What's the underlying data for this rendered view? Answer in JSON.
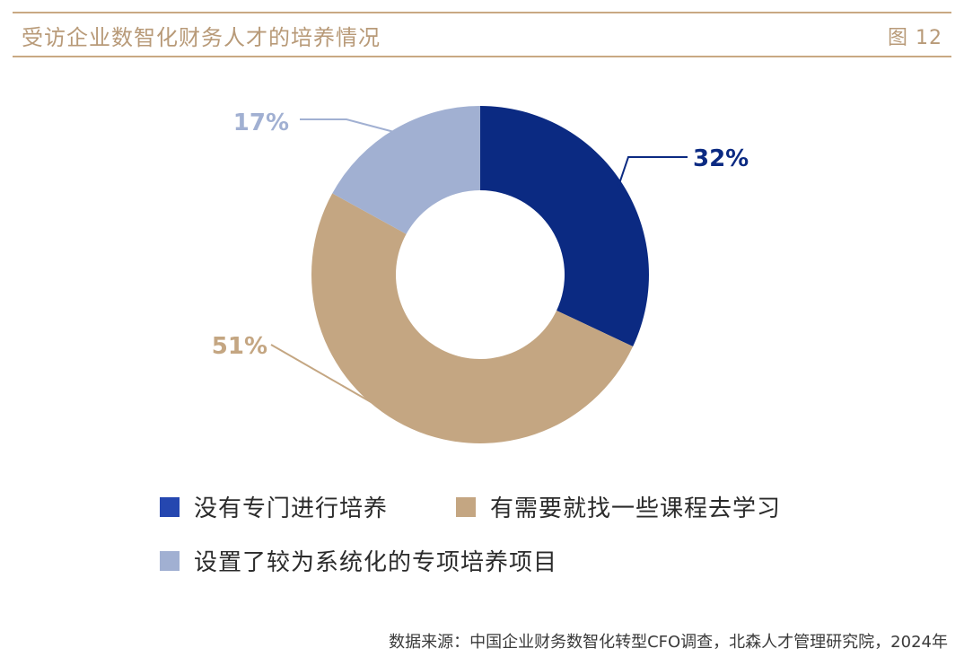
{
  "header": {
    "title": "受访企业数智化财务人才的培养情况",
    "figure_label": "图 12"
  },
  "chart_data": {
    "type": "pie",
    "donut": true,
    "labels": [
      "没有专门进行培养",
      "有需要就找一些课程去学习",
      "设置了较为系统化的专项培养项目"
    ],
    "values": [
      32,
      51,
      17
    ],
    "value_labels": [
      "32%",
      "51%",
      "17%"
    ],
    "colors": [
      "#0b2a82",
      "#c4a682",
      "#a1b0d2"
    ],
    "legend_colors": [
      "#2547b0",
      "#c4a682",
      "#a1b0d2"
    ],
    "label_colors": [
      "#0b2a82",
      "#c4a682",
      "#a1b0d2"
    ],
    "legend_position": "bottom"
  },
  "footer": {
    "source": "数据来源：中国企业财务数智化转型CFO调查，北森人才管理研究院，2024年"
  }
}
